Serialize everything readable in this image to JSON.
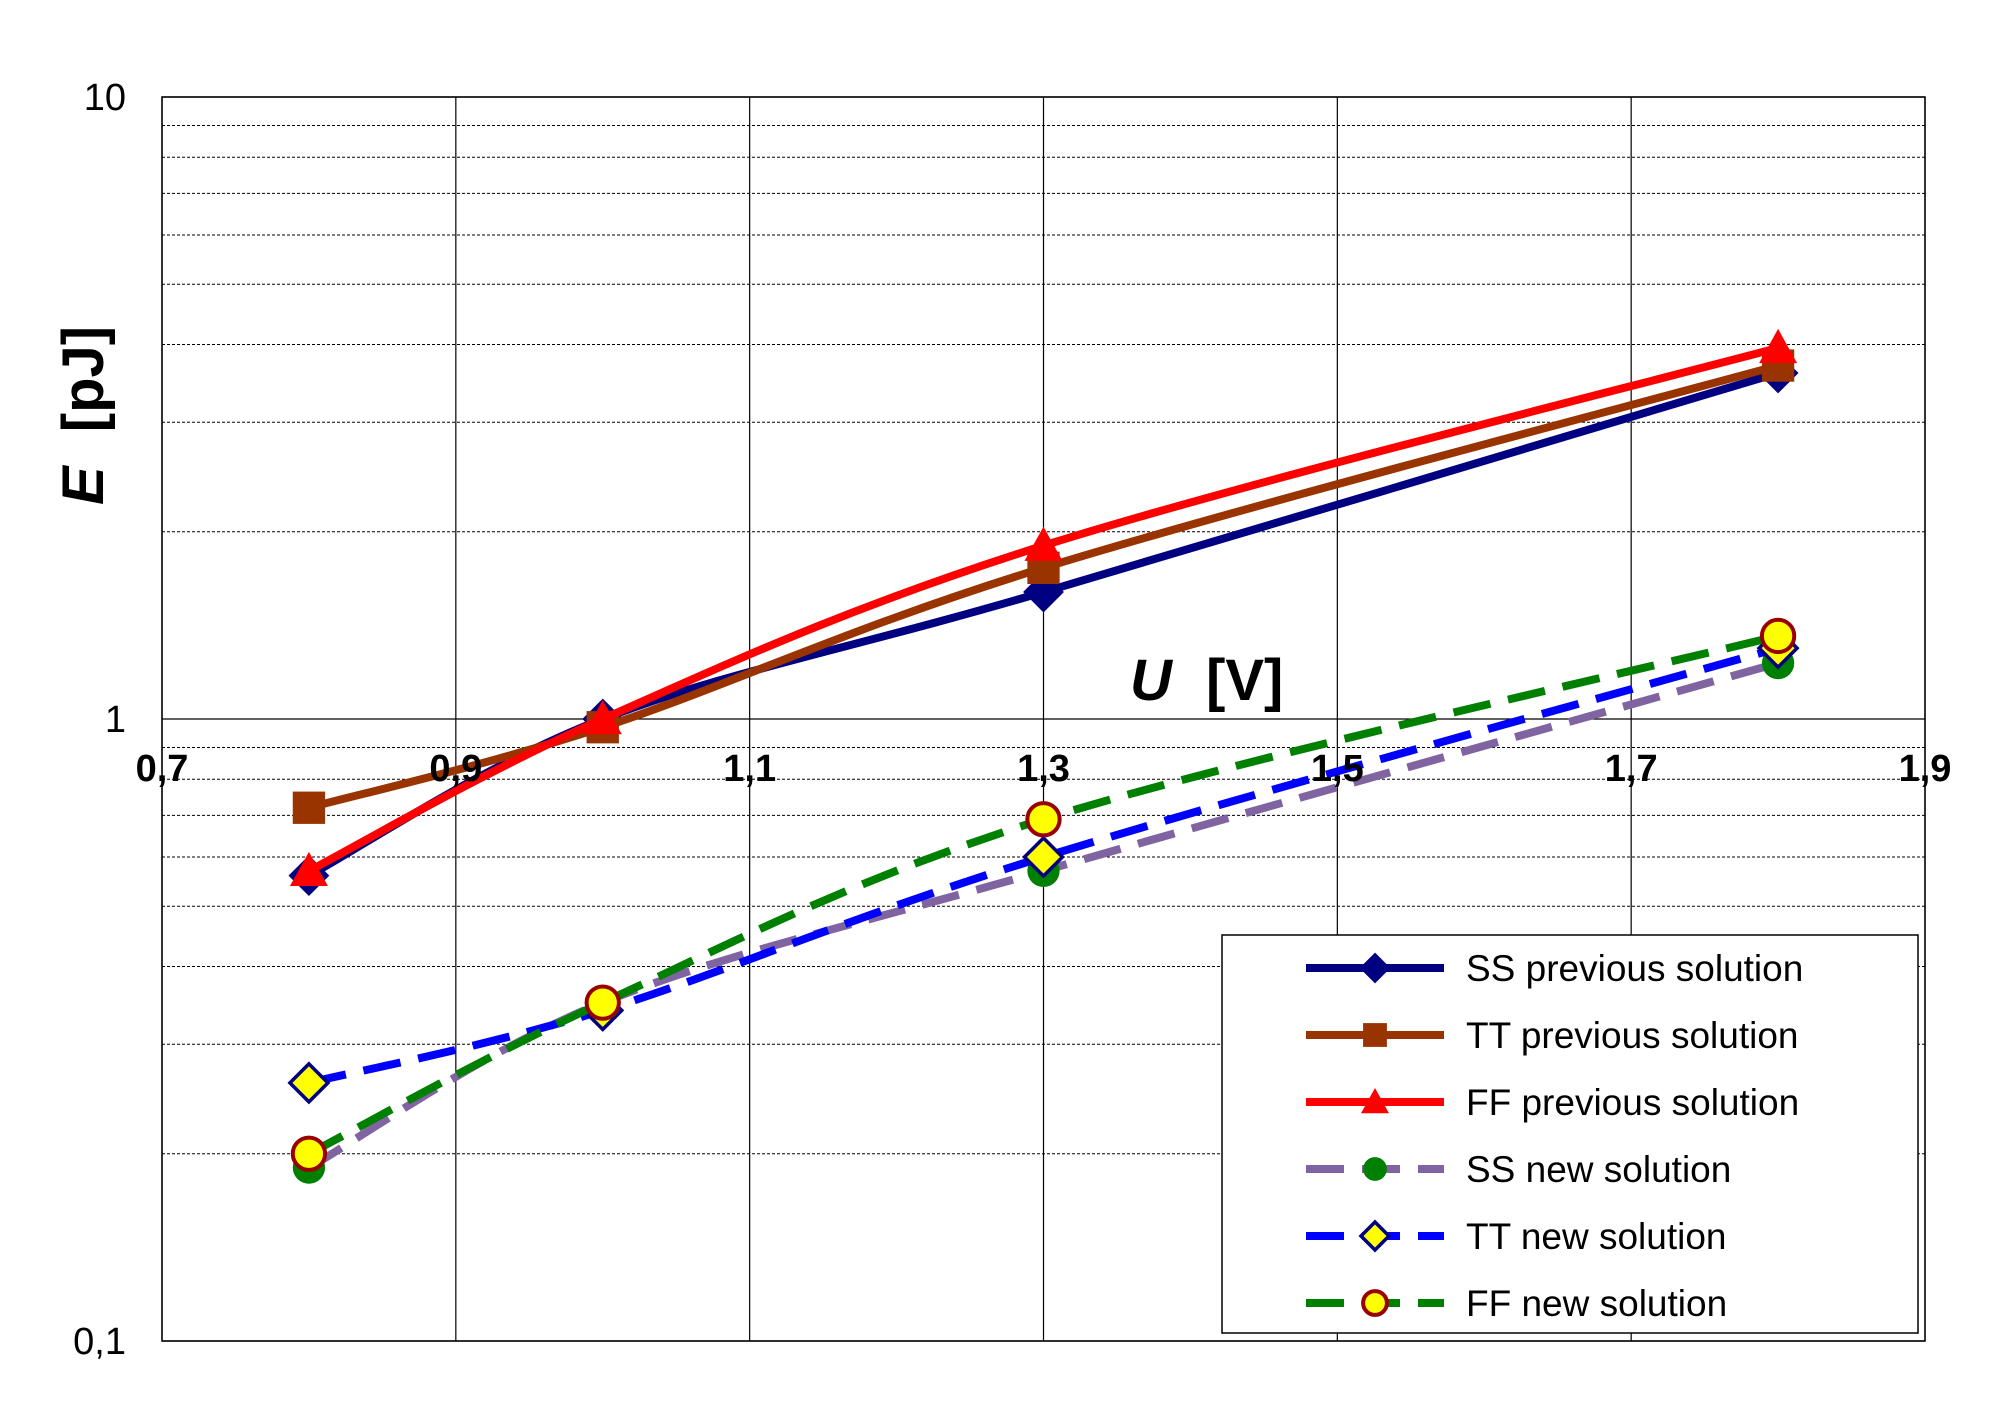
{
  "chart_data": {
    "type": "line",
    "xlabel": {
      "var": "U",
      "unit": "[V]"
    },
    "ylabel": {
      "var": "E",
      "unit": "[pJ]"
    },
    "xlim": [
      0.7,
      1.9
    ],
    "ylim": [
      0.1,
      10
    ],
    "y_scale": "log",
    "grid": true,
    "legend_position": "bottom-right",
    "x_ticks": [
      "0,7",
      "0,9",
      "1,1",
      "1,3",
      "1,5",
      "1,7",
      "1,9"
    ],
    "y_ticks": [
      "0,1",
      "1",
      "10"
    ],
    "x": [
      0.8,
      1.0,
      1.3,
      1.8
    ],
    "series": [
      {
        "name": "SS previous solution",
        "values": [
          0.56,
          1.0,
          1.6,
          3.6
        ],
        "color": "#000080",
        "marker": "diamond",
        "dashed": false
      },
      {
        "name": "TT previous solution",
        "values": [
          0.72,
          0.97,
          1.75,
          3.7
        ],
        "color": "#993300",
        "marker": "square",
        "dashed": false
      },
      {
        "name": "FF previous solution",
        "values": [
          0.57,
          1.0,
          1.9,
          3.95
        ],
        "color": "#ff0000",
        "marker": "triangle",
        "dashed": false
      },
      {
        "name": "SS new solution",
        "values": [
          0.19,
          0.35,
          0.57,
          1.23
        ],
        "color": "#8064a2",
        "marker": "circle",
        "marker_color": "#008000",
        "dashed": true
      },
      {
        "name": "TT new solution",
        "values": [
          0.26,
          0.34,
          0.6,
          1.3
        ],
        "color": "#0000ff",
        "marker": "diamond-yellow",
        "dashed": true
      },
      {
        "name": "FF new solution",
        "values": [
          0.2,
          0.35,
          0.69,
          1.36
        ],
        "color": "#008000",
        "marker": "circle-yellow",
        "dashed": true
      }
    ]
  }
}
